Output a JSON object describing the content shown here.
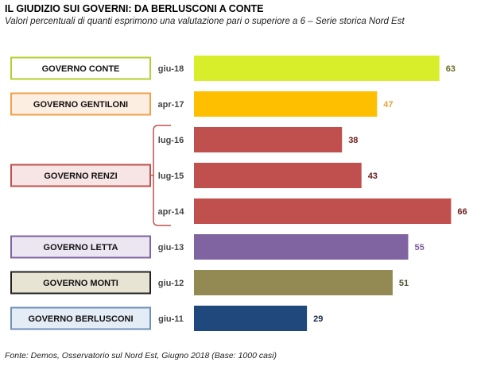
{
  "title": "IL GIUDIZIO  SUI GOVERNI: DA BERLUSCONI A CONTE",
  "subtitle": "Valori percentuali di quanti esprimono una valutazione pari o superiore a 6 – Serie storica Nord Est",
  "source": "Fonte: Demos, Osservatorio sul Nord Est, Giugno 2018 (Base: 1000 casi)",
  "chart_data": {
    "type": "bar",
    "orientation": "horizontal",
    "title": "IL GIUDIZIO  SUI GOVERNI: DA BERLUSCONI A CONTE",
    "xlim": [
      0,
      70
    ],
    "grid": false,
    "legend": "none",
    "categories": [
      "giu-18",
      "apr-17",
      "lug-16",
      "lug-15",
      "apr-14",
      "giu-13",
      "giu-12",
      "giu-11"
    ],
    "values": [
      63,
      47,
      38,
      43,
      66,
      55,
      51,
      29
    ],
    "bar_colors": [
      "#d9ee2a",
      "#fdbf00",
      "#c0504d",
      "#c0504d",
      "#c0504d",
      "#8064a2",
      "#938953",
      "#1f497d"
    ],
    "value_label_colors": [
      "#6b6b22",
      "#e8a23a",
      "#6b1f1f",
      "#6b1f1f",
      "#6b1f1f",
      "#7d5ea0",
      "#4a4a2a",
      "#1a2a4a"
    ],
    "groups": [
      {
        "label": "GOVERNO CONTE",
        "bar_indices": [
          0
        ],
        "border_color": "#b5cf2d",
        "fill": "#ffffff"
      },
      {
        "label": "GOVERNO GENTILONI",
        "bar_indices": [
          1
        ],
        "border_color": "#f0a04b",
        "fill": "#fdeee2"
      },
      {
        "label": "GOVERNO RENZI",
        "bar_indices": [
          2,
          3,
          4
        ],
        "border_color": "#c0504d",
        "fill": "#f7e4e4"
      },
      {
        "label": "GOVERNO LETTA",
        "bar_indices": [
          5
        ],
        "border_color": "#8064a2",
        "fill": "#ece6f3"
      },
      {
        "label": "GOVERNO MONTI",
        "bar_indices": [
          6
        ],
        "border_color": "#222222",
        "fill": "#e8e4d4"
      },
      {
        "label": "GOVERNO BERLUSCONI",
        "bar_indices": [
          7
        ],
        "border_color": "#6f8fb8",
        "fill": "#e4ecf6"
      }
    ]
  }
}
